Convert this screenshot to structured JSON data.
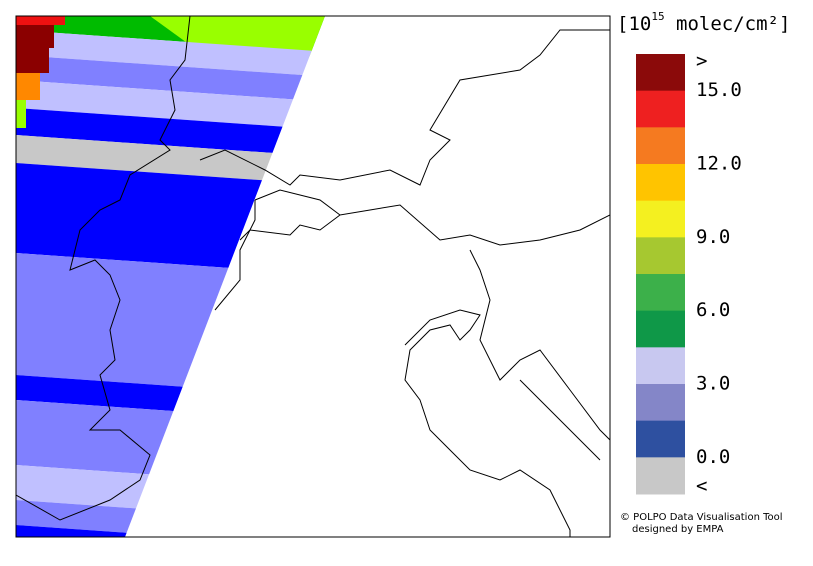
{
  "legend": {
    "unit": {
      "base": "[10",
      "exponent": "15",
      "rest": " molec/cm²]"
    },
    "colors": [
      "#8b0a0a",
      "#ee2020",
      "#f57a20",
      "#ffc400",
      "#f4f020",
      "#a6c830",
      "#3cb04a",
      "#0f9848",
      "#c8c8f0",
      "#8486c8",
      "#2e50a0",
      "#c8c8c8"
    ],
    "labels": [
      ">",
      "15.0",
      "12.0",
      "9.0",
      "6.0",
      "3.0",
      "0.0",
      "<"
    ]
  },
  "credits": [
    "© POLPO Data Visualisation Tool",
    "designed by EMPA"
  ]
}
